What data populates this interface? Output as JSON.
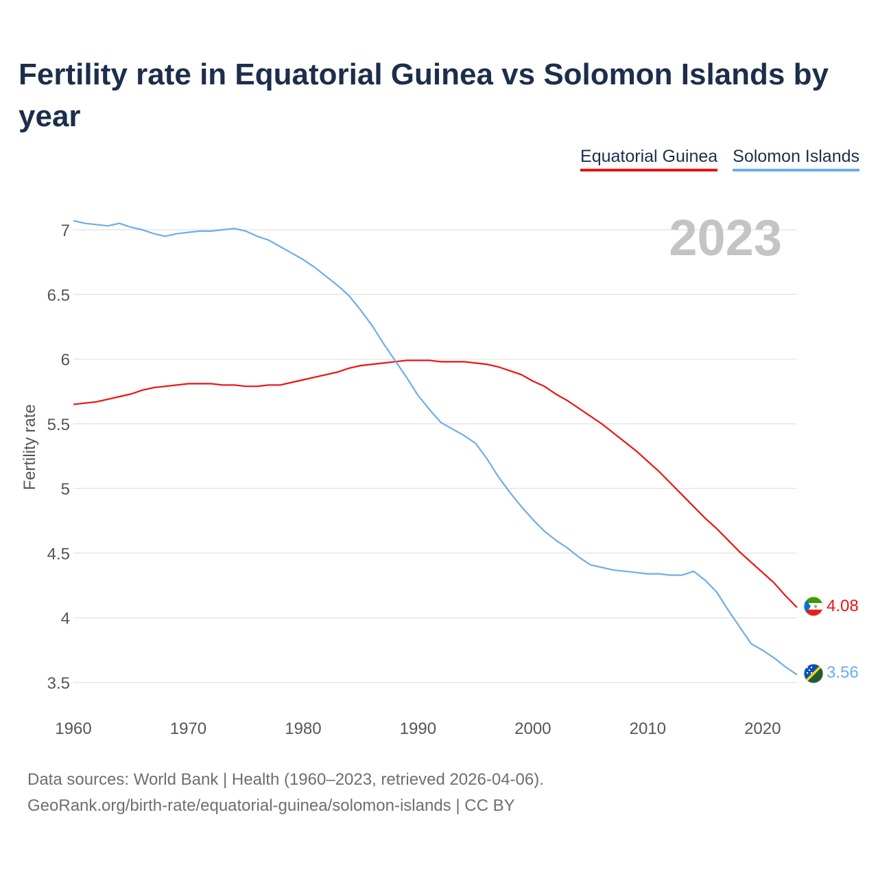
{
  "title": "Fertility rate in Equatorial Guinea vs Solomon Islands by year",
  "year_watermark": "2023",
  "footer": {
    "line1": "Data sources: World Bank | Health (1960–2023, retrieved 2026-04-06).",
    "line2": "GeoRank.org/birth-rate/equatorial-guinea/solomon-islands | CC BY"
  },
  "colors": {
    "eq_guinea": "#ee1111",
    "solomon": "#6aaee8",
    "grid": "#e6e6e6",
    "axis_text": "#555555",
    "watermark": "#c4c4c4"
  },
  "chart_data": {
    "type": "line",
    "title": "Fertility rate in Equatorial Guinea vs Solomon Islands by year",
    "xlabel": "",
    "ylabel": "Fertility rate",
    "xlim": [
      1960,
      2023
    ],
    "ylim": [
      3.3,
      7.1
    ],
    "x_ticks": [
      1960,
      1970,
      1980,
      1990,
      2000,
      2010,
      2020
    ],
    "y_ticks": [
      3.5,
      4,
      4.5,
      5,
      5.5,
      6,
      6.5,
      7
    ],
    "x_tick_labels": [
      "1960",
      "1970",
      "1980",
      "1990",
      "2000",
      "2010",
      "2020"
    ],
    "y_tick_labels": [
      "3.5",
      "4",
      "4.5",
      "5",
      "5.5",
      "6",
      "6.5",
      "7"
    ],
    "legend_position": "top-right",
    "x": [
      1960,
      1961,
      1962,
      1963,
      1964,
      1965,
      1966,
      1967,
      1968,
      1969,
      1970,
      1971,
      1972,
      1973,
      1974,
      1975,
      1976,
      1977,
      1978,
      1979,
      1980,
      1981,
      1982,
      1983,
      1984,
      1985,
      1986,
      1987,
      1988,
      1989,
      1990,
      1991,
      1992,
      1993,
      1994,
      1995,
      1996,
      1997,
      1998,
      1999,
      2000,
      2001,
      2002,
      2003,
      2004,
      2005,
      2006,
      2007,
      2008,
      2009,
      2010,
      2011,
      2012,
      2013,
      2014,
      2015,
      2016,
      2017,
      2018,
      2019,
      2020,
      2021,
      2022,
      2023
    ],
    "series": [
      {
        "name": "Equatorial Guinea",
        "color": "#ee1111",
        "end_label": "4.08",
        "values": [
          5.65,
          5.66,
          5.67,
          5.69,
          5.71,
          5.73,
          5.76,
          5.78,
          5.79,
          5.8,
          5.81,
          5.81,
          5.81,
          5.8,
          5.8,
          5.79,
          5.79,
          5.8,
          5.8,
          5.82,
          5.84,
          5.86,
          5.88,
          5.9,
          5.93,
          5.95,
          5.96,
          5.97,
          5.98,
          5.99,
          5.99,
          5.99,
          5.98,
          5.98,
          5.98,
          5.97,
          5.96,
          5.94,
          5.91,
          5.88,
          5.83,
          5.79,
          5.73,
          5.68,
          5.62,
          5.56,
          5.5,
          5.43,
          5.36,
          5.29,
          5.21,
          5.13,
          5.04,
          4.95,
          4.86,
          4.77,
          4.69,
          4.6,
          4.51,
          4.43,
          4.35,
          4.27,
          4.17,
          4.08
        ]
      },
      {
        "name": "Solomon Islands",
        "color": "#6aaee8",
        "end_label": "3.56",
        "values": [
          7.07,
          7.05,
          7.04,
          7.03,
          7.05,
          7.02,
          7.0,
          6.97,
          6.95,
          6.97,
          6.98,
          6.99,
          6.99,
          7.0,
          7.01,
          6.99,
          6.95,
          6.92,
          6.87,
          6.82,
          6.77,
          6.71,
          6.64,
          6.57,
          6.49,
          6.38,
          6.26,
          6.12,
          5.99,
          5.86,
          5.72,
          5.61,
          5.51,
          5.46,
          5.41,
          5.35,
          5.23,
          5.09,
          4.97,
          4.86,
          4.76,
          4.67,
          4.6,
          4.54,
          4.47,
          4.41,
          4.39,
          4.37,
          4.36,
          4.35,
          4.34,
          4.34,
          4.33,
          4.33,
          4.36,
          4.29,
          4.2,
          4.06,
          3.93,
          3.8,
          3.75,
          3.69,
          3.62,
          3.56
        ]
      }
    ]
  }
}
